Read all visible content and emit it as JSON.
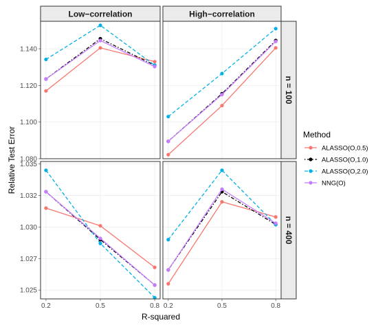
{
  "chart_data": {
    "type": "line",
    "xlabel": "R-squared",
    "ylabel": "Relative Test Error",
    "x": [
      0.2,
      0.5,
      0.8
    ],
    "columns": [
      "Low−correlation",
      "High−correlation"
    ],
    "rows": [
      "n = 100",
      "n = 400"
    ],
    "legend": {
      "title": "Method",
      "position": "right"
    },
    "grid": true,
    "series": [
      {
        "name": "ALASSO(O,0.5)",
        "color": "#f8766d",
        "dash": "solid",
        "marker": "circle"
      },
      {
        "name": "ALASSO(O,1.0)",
        "color": "#000000",
        "dash": "dotdash",
        "marker": "circle"
      },
      {
        "name": "ALASSO(O,2.0)",
        "color": "#00b0e6",
        "dash": "dashed",
        "marker": "circle"
      },
      {
        "name": "NNG(O)",
        "color": "#c77cff",
        "dash": "solid",
        "marker": "circle"
      }
    ],
    "panels": [
      {
        "row": 0,
        "col": 0,
        "ylim": [
          1.08,
          1.155
        ],
        "yticks": [
          1.08,
          1.1,
          1.12,
          1.14
        ],
        "ytick_labels": [
          "1.080",
          "1.100",
          "1.120",
          "1.140"
        ],
        "values": {
          "ALASSO(O,0.5)": [
            1.117,
            1.1405,
            1.133
          ],
          "ALASSO(O,1.0)": [
            1.1235,
            1.1455,
            1.131
          ],
          "ALASSO(O,2.0)": [
            1.1342,
            1.1528,
            1.131
          ],
          "NNG(O)": [
            1.1235,
            1.1445,
            1.1303
          ]
        }
      },
      {
        "row": 0,
        "col": 1,
        "ylim": [
          1.08,
          1.155
        ],
        "values": {
          "ALASSO(O,0.5)": [
            1.0822,
            1.109,
            1.1405
          ],
          "ALASSO(O,1.0)": [
            1.0895,
            1.1155,
            1.1445
          ],
          "ALASSO(O,2.0)": [
            1.103,
            1.1265,
            1.151
          ],
          "NNG(O)": [
            1.0895,
            1.115,
            1.144
          ]
        }
      },
      {
        "row": 1,
        "col": 0,
        "ylim": [
          1.0243,
          1.0352
        ],
        "yticks": [
          1.025,
          1.0275,
          1.03,
          1.0325,
          1.035
        ],
        "ytick_labels": [
          "1.025",
          "1.027",
          "1.030",
          "1.032",
          "1.035"
        ],
        "values": {
          "ALASSO(O,0.5)": [
            1.0315,
            1.0301,
            1.0268
          ],
          "ALASSO(O,1.0)": [
            1.0328,
            1.029,
            1.0254
          ],
          "ALASSO(O,2.0)": [
            1.0345,
            1.0287,
            1.0244
          ],
          "NNG(O)": [
            1.0328,
            1.0291,
            1.0254
          ]
        }
      },
      {
        "row": 1,
        "col": 1,
        "ylim": [
          1.0243,
          1.0352
        ],
        "values": {
          "ALASSO(O,0.5)": [
            1.0255,
            1.032,
            1.0308
          ],
          "ALASSO(O,1.0)": [
            1.0266,
            1.0328,
            1.0302
          ],
          "ALASSO(O,2.0)": [
            1.029,
            1.0345,
            1.0302
          ],
          "NNG(O)": [
            1.0266,
            1.033,
            1.0303
          ]
        }
      }
    ]
  }
}
